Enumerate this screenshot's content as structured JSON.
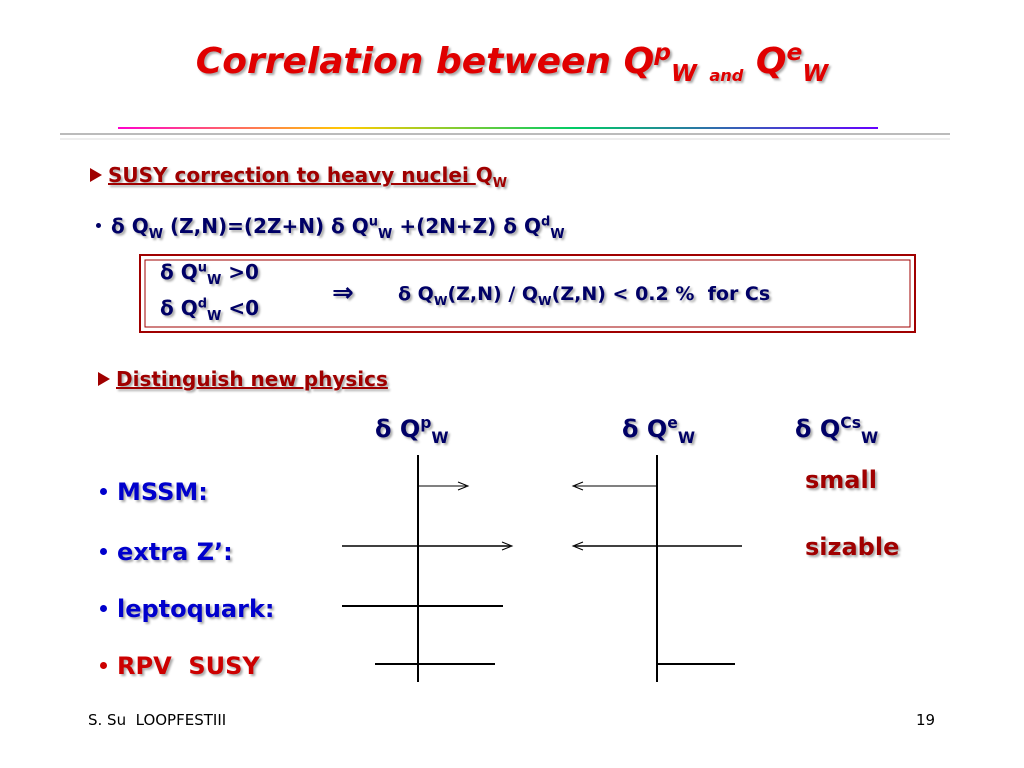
{
  "title": [
    "Correlation between Q",
    "p",
    "W",
    "and",
    "Q",
    "e",
    "W"
  ],
  "section1": {
    "heading": [
      "SUSY correction to heavy nuclei ",
      "Q",
      "W"
    ],
    "formula": [
      "δ Q",
      "W",
      " (Z,N)=(2Z+N) δ Q",
      "u",
      "W",
      " +(2N+Z) δ Q",
      "d",
      "W"
    ],
    "box": {
      "line1": [
        "δ Q",
        "u",
        "W",
        " >0"
      ],
      "line2": [
        "δ Q",
        "d",
        "W",
        " <0"
      ],
      "arrow": "⇒",
      "result": [
        "δ Q",
        "W",
        "(Z,N) / Q",
        "W",
        "(Z,N) < 0.2 %  for Cs"
      ]
    }
  },
  "section2": {
    "heading": "Distinguish new physics",
    "columns": [
      [
        "δ Q",
        "p",
        "W"
      ],
      [
        "δ Q",
        "e",
        "W"
      ],
      [
        "δ Q",
        "Cs",
        "W"
      ]
    ],
    "rows": [
      "MSSM:",
      "extra Z’:",
      "leptoquark:",
      "RPV  SUSY"
    ],
    "cs_labels": [
      "small",
      "sizable"
    ]
  },
  "footer": {
    "author": "S. Su  LOOPFESTIII",
    "page": "19"
  }
}
